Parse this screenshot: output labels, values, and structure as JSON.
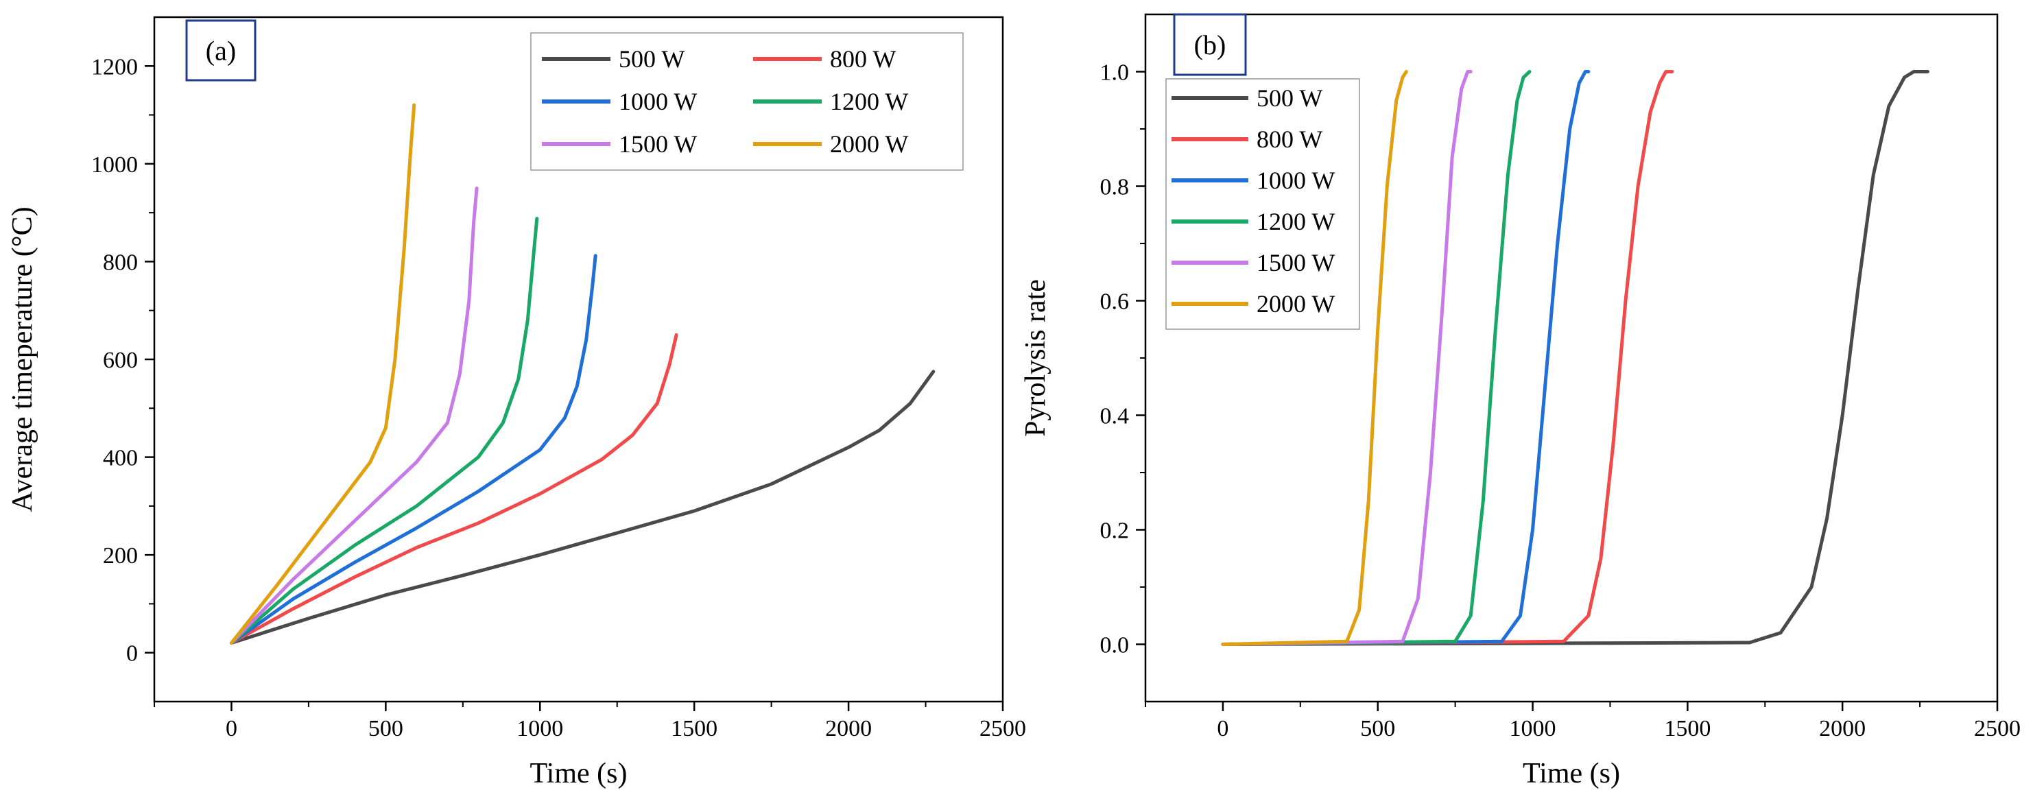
{
  "chart_data": [
    {
      "type": "line",
      "panel_label": "(a)",
      "xlabel": "Time (s)",
      "ylabel": "Average timeperature (°C)",
      "xlim": [
        -250,
        2500
      ],
      "ylim": [
        -100,
        1300
      ],
      "xticks": [
        0,
        500,
        1000,
        1500,
        2000,
        2500
      ],
      "xtick_labels": [
        "0",
        "500",
        "1000",
        "1500",
        "2000",
        "2500"
      ],
      "yticks": [
        0,
        200,
        400,
        600,
        800,
        1000,
        1200
      ],
      "ytick_labels": [
        "0",
        "200",
        "400",
        "600",
        "800",
        "1000",
        "1200"
      ],
      "legend_position": "top-right",
      "legend_columns": 2,
      "series": [
        {
          "name": "500 W",
          "color": "#4a4a4a",
          "x": [
            0,
            250,
            500,
            750,
            1000,
            1250,
            1500,
            1750,
            2000,
            2100,
            2200,
            2275
          ],
          "y": [
            20,
            70,
            118,
            158,
            200,
            245,
            290,
            345,
            420,
            455,
            510,
            575
          ]
        },
        {
          "name": "800 W",
          "color": "#f04a4a",
          "x": [
            0,
            200,
            400,
            600,
            800,
            1000,
            1200,
            1300,
            1380,
            1420,
            1442
          ],
          "y": [
            20,
            90,
            155,
            215,
            265,
            325,
            395,
            445,
            510,
            590,
            650
          ]
        },
        {
          "name": "1000 W",
          "color": "#1f6fd6",
          "x": [
            0,
            200,
            400,
            600,
            800,
            1000,
            1080,
            1120,
            1150,
            1170,
            1180
          ],
          "y": [
            20,
            110,
            185,
            255,
            330,
            415,
            480,
            545,
            640,
            750,
            812
          ]
        },
        {
          "name": "1200 W",
          "color": "#1aa866",
          "x": [
            0,
            200,
            400,
            600,
            800,
            880,
            930,
            960,
            980,
            990
          ],
          "y": [
            20,
            130,
            220,
            300,
            400,
            470,
            560,
            680,
            820,
            888
          ]
        },
        {
          "name": "1500 W",
          "color": "#c77ae8",
          "x": [
            0,
            200,
            400,
            600,
            700,
            740,
            770,
            785,
            795
          ],
          "y": [
            20,
            150,
            270,
            390,
            470,
            570,
            720,
            880,
            950
          ]
        },
        {
          "name": "2000 W",
          "color": "#e0a010",
          "x": [
            0,
            150,
            300,
            450,
            500,
            530,
            560,
            580,
            592
          ],
          "y": [
            20,
            140,
            265,
            390,
            460,
            600,
            830,
            1020,
            1120
          ]
        }
      ]
    },
    {
      "type": "line",
      "panel_label": "(b)",
      "xlabel": "Time (s)",
      "ylabel": "Pyrolysis rate",
      "xlim": [
        -250,
        2500
      ],
      "ylim": [
        -0.1,
        1.1
      ],
      "xticks": [
        0,
        500,
        1000,
        1500,
        2000,
        2500
      ],
      "xtick_labels": [
        "0",
        "500",
        "1000",
        "1500",
        "2000",
        "2500"
      ],
      "yticks": [
        0,
        0.2,
        0.4,
        0.6,
        0.8,
        1.0
      ],
      "ytick_labels": [
        "0.0",
        "0.2",
        "0.4",
        "0.6",
        "0.8",
        "1.0"
      ],
      "legend_position": "top-left",
      "legend_columns": 1,
      "series": [
        {
          "name": "500 W",
          "color": "#4a4a4a",
          "x": [
            0,
            1700,
            1800,
            1900,
            1950,
            2000,
            2050,
            2100,
            2150,
            2200,
            2230,
            2275
          ],
          "y": [
            0,
            0.003,
            0.02,
            0.1,
            0.22,
            0.4,
            0.62,
            0.82,
            0.94,
            0.99,
            1.0,
            1.0
          ]
        },
        {
          "name": "800 W",
          "color": "#f04a4a",
          "x": [
            0,
            1100,
            1180,
            1220,
            1260,
            1300,
            1340,
            1380,
            1410,
            1430,
            1450
          ],
          "y": [
            0,
            0.005,
            0.05,
            0.15,
            0.35,
            0.6,
            0.8,
            0.93,
            0.98,
            1.0,
            1.0
          ]
        },
        {
          "name": "1000 W",
          "color": "#1f6fd6",
          "x": [
            0,
            900,
            960,
            1000,
            1040,
            1080,
            1120,
            1150,
            1170,
            1180
          ],
          "y": [
            0,
            0.005,
            0.05,
            0.2,
            0.45,
            0.7,
            0.9,
            0.98,
            1.0,
            1.0
          ]
        },
        {
          "name": "1200 W",
          "color": "#1aa866",
          "x": [
            0,
            750,
            800,
            840,
            880,
            920,
            950,
            970,
            990
          ],
          "y": [
            0,
            0.005,
            0.05,
            0.25,
            0.55,
            0.82,
            0.95,
            0.99,
            1.0
          ]
        },
        {
          "name": "1500 W",
          "color": "#c77ae8",
          "x": [
            0,
            580,
            630,
            670,
            710,
            740,
            770,
            790,
            800
          ],
          "y": [
            0,
            0.005,
            0.08,
            0.3,
            0.6,
            0.85,
            0.97,
            1.0,
            1.0
          ]
        },
        {
          "name": "2000 W",
          "color": "#e0a010",
          "x": [
            0,
            400,
            440,
            470,
            500,
            530,
            560,
            580,
            592
          ],
          "y": [
            0,
            0.005,
            0.06,
            0.25,
            0.55,
            0.8,
            0.95,
            0.99,
            1.0
          ]
        }
      ]
    }
  ]
}
